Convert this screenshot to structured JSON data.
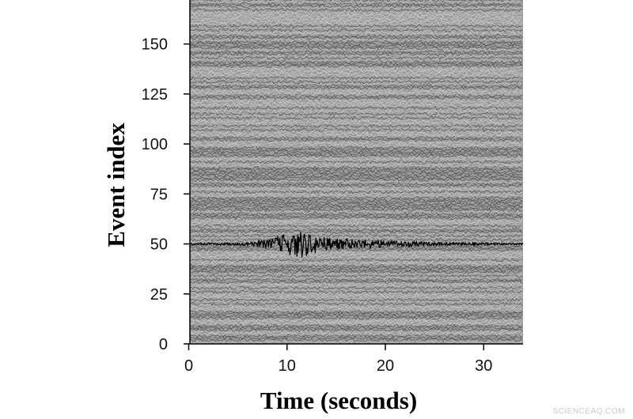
{
  "chart_data": {
    "type": "line",
    "title": "",
    "xlabel": "Time (seconds)",
    "ylabel": "Event index",
    "xlim": [
      0,
      34
    ],
    "ylim": [
      0,
      172
    ],
    "x_ticks": [
      0,
      10,
      20,
      30
    ],
    "x_tick_labels": [
      "0",
      "10",
      "20",
      "30"
    ],
    "y_ticks": [
      0,
      25,
      50,
      75,
      100,
      125,
      150
    ],
    "y_tick_labels": [
      "0",
      "25",
      "50",
      "75",
      "100",
      "125",
      "150"
    ],
    "grid": false,
    "background_description": "dense grey noise traces, one per event index",
    "highlighted_trace": {
      "event_index": 50,
      "envelope": {
        "x": [
          0,
          5,
          7,
          8.5,
          9.5,
          10.5,
          11.5,
          12.5,
          13.5,
          15,
          17,
          20,
          23,
          26,
          30,
          34
        ],
        "amplitude": [
          1,
          1.5,
          4,
          7,
          12,
          15,
          18,
          13,
          10,
          7,
          6,
          5,
          3,
          2,
          1.5,
          1
        ]
      }
    },
    "colors": {
      "background": "#9d9d9d",
      "highlight_trace": "#000000",
      "axis": "#000000"
    }
  },
  "watermark": "SCIENCEAQ.COM"
}
